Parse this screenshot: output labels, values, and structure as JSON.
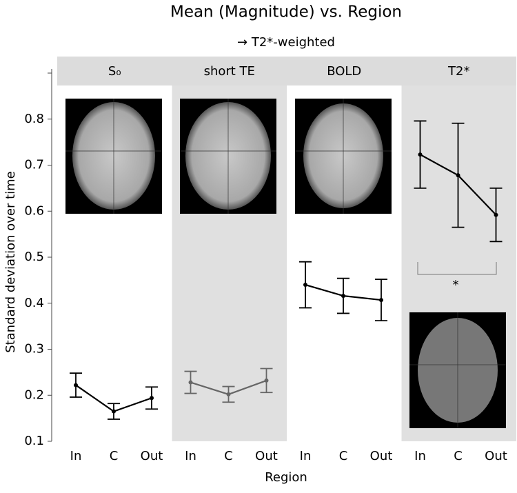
{
  "chart_data": {
    "type": "line",
    "title": "Mean (Magnitude) vs. Region",
    "subtitle": "→ T2*-weighted",
    "x_label": "Region",
    "y_label": "Standard deviation over time",
    "categories": [
      "In",
      "C",
      "Out"
    ],
    "series": [
      {
        "name": "S₀",
        "color": "#000000",
        "values": [
          0.222,
          0.165,
          0.194
        ],
        "errors": [
          0.026,
          0.017,
          0.024
        ]
      },
      {
        "name": "short TE",
        "color": "#666666",
        "values": [
          0.228,
          0.202,
          0.232
        ],
        "errors": [
          0.024,
          0.017,
          0.026
        ]
      },
      {
        "name": "BOLD",
        "color": "#000000",
        "values": [
          0.44,
          0.416,
          0.407
        ],
        "errors": [
          0.05,
          0.038,
          0.045
        ]
      },
      {
        "name": "T2*",
        "color": "#000000",
        "values": [
          0.723,
          0.678,
          0.592
        ],
        "errors": [
          0.073,
          0.113,
          0.058
        ]
      }
    ],
    "annotation": "*",
    "ylim": [
      0.1,
      0.9
    ],
    "yticks": [
      0.1,
      0.2,
      0.3,
      0.4,
      0.5,
      0.6,
      0.7,
      0.8
    ]
  }
}
